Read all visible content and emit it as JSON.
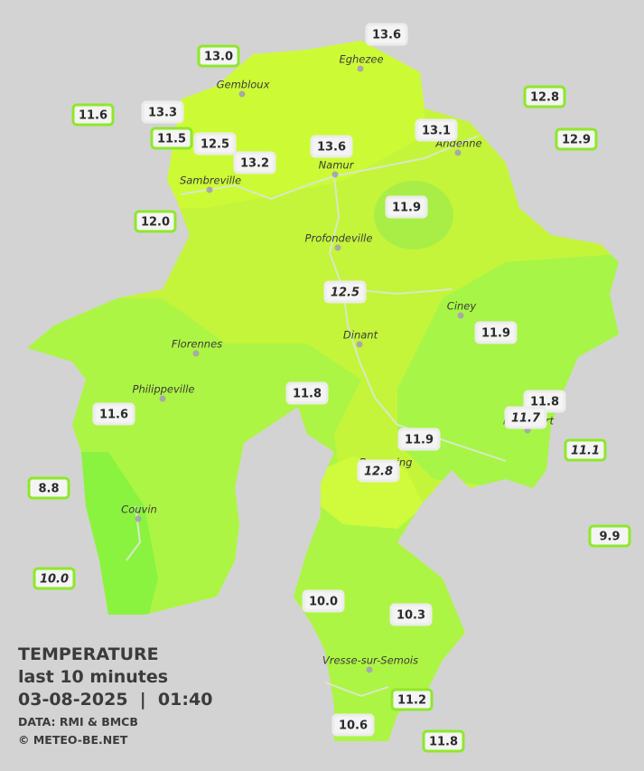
{
  "stations": [
    {
      "temp": "13.6"
    },
    {
      "temp": "13.0"
    },
    {
      "temp": "12.8"
    },
    {
      "temp": "11.6"
    },
    {
      "temp": "13.3"
    },
    {
      "temp": "13.1"
    },
    {
      "temp": "11.5"
    },
    {
      "temp": "12.5"
    },
    {
      "temp": "13.6"
    },
    {
      "temp": "12.9"
    },
    {
      "temp": "13.2"
    },
    {
      "temp": "12.0"
    },
    {
      "temp": "11.9"
    },
    {
      "temp": "12.5"
    },
    {
      "temp": "11.9"
    },
    {
      "temp": "11.8"
    },
    {
      "temp": "11.8"
    },
    {
      "temp": "11.6"
    },
    {
      "temp": "11.1"
    },
    {
      "temp": "11.9"
    },
    {
      "temp": "8.8"
    },
    {
      "temp": "9.9"
    },
    {
      "temp": "10.0"
    },
    {
      "temp": "10.0"
    },
    {
      "temp": "10.3"
    },
    {
      "temp": "11.2"
    },
    {
      "temp": "10.6"
    },
    {
      "temp": "11.8"
    },
    {
      "temp": "11.7"
    },
    {
      "temp": "12.8"
    }
  ],
  "towns": [
    {
      "name": "Eghezee"
    },
    {
      "name": "Gembloux"
    },
    {
      "name": "Andenne"
    },
    {
      "name": "Namur"
    },
    {
      "name": "Sambreville"
    },
    {
      "name": "Profondeville"
    },
    {
      "name": "Ciney"
    },
    {
      "name": "Dinant"
    },
    {
      "name": "Florennes"
    },
    {
      "name": "Philippeville"
    },
    {
      "name": "Rochefort"
    },
    {
      "name": "Beauraing"
    },
    {
      "name": "Couvin"
    },
    {
      "name": "Vresse-sur-Semois"
    }
  ],
  "legend": {
    "title": "TEMPERATURE",
    "period": "last 10 minutes",
    "datetime": "03-08-2025  |  01:40",
    "source": "DATA: RMI & BMCB",
    "copyright": "© METEO-BE.NET"
  }
}
